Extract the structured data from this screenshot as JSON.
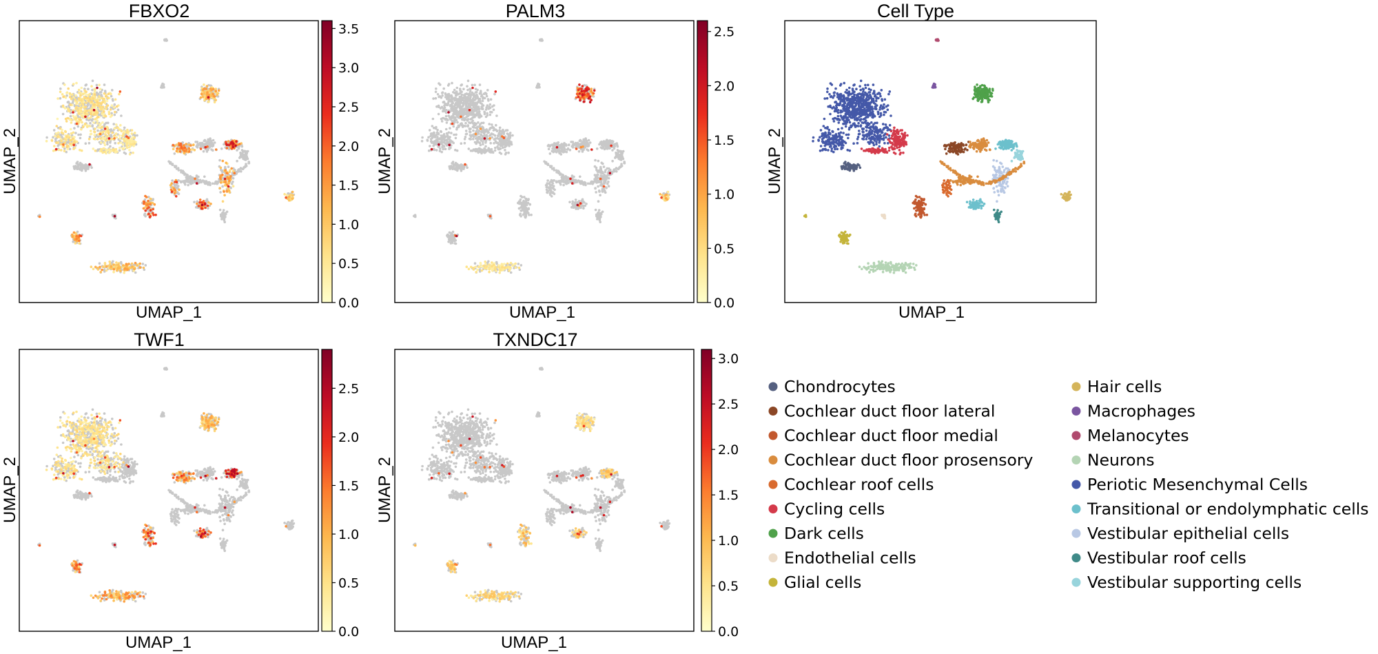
{
  "figure": {
    "gradient_stops": [
      "#ffffcc",
      "#fee38b",
      "#fdb84f",
      "#fc7c2e",
      "#ea2d1e",
      "#bd0c26",
      "#800026"
    ],
    "background_point_color": "#c8c8c8"
  },
  "chart_data": [
    {
      "type": "scatter",
      "title": "FBXO2",
      "xlabel": "UMAP_1",
      "ylabel": "UMAP_2",
      "grid": false,
      "colorbar": {
        "min": 0.0,
        "max": 3.6,
        "ticks": [
          "0.0",
          "0.5",
          "1.0",
          "1.5",
          "2.0",
          "2.5",
          "3.0",
          "3.5"
        ],
        "colormap": "YlOrRd"
      },
      "expression_by_cluster": {
        "Periotic Mesenchymal Cells": 0.6,
        "Cycling cells": 0.5,
        "Cochlear duct floor lateral": 1.5,
        "Cochlear duct floor medial": 1.8,
        "Cochlear roof cells": 1.8,
        "Transitional or endolymphatic cells": 2.2,
        "Dark cells": 1.2,
        "Hair cells": 1.0,
        "Glial cells": 1.4,
        "Neurons": 1.2,
        "Vestibular epithelial cells": 1.3
      }
    },
    {
      "type": "scatter",
      "title": "PALM3",
      "xlabel": "UMAP_1",
      "ylabel": "UMAP_2",
      "grid": false,
      "colorbar": {
        "min": 0.0,
        "max": 2.6,
        "ticks": [
          "0.0",
          "0.5",
          "1.0",
          "1.5",
          "2.0",
          "2.5"
        ],
        "colormap": "YlOrRd"
      },
      "expression_by_cluster": {
        "Dark cells": 1.6,
        "Hair cells": 0.8,
        "Neurons": 0.4
      }
    },
    {
      "type": "scatter",
      "title": "Cell Type",
      "xlabel": "UMAP_1",
      "ylabel": "UMAP_2",
      "grid": false,
      "legend_position": "below-right",
      "categories": [
        {
          "name": "Chondrocytes",
          "color": "#556080"
        },
        {
          "name": "Cochlear duct floor lateral",
          "color": "#8b4726"
        },
        {
          "name": "Cochlear duct floor medial",
          "color": "#c2582e"
        },
        {
          "name": "Cochlear duct floor prosensory",
          "color": "#d98c3e"
        },
        {
          "name": "Cochlear roof cells",
          "color": "#d96a2e"
        },
        {
          "name": "Cycling cells",
          "color": "#d43a4a"
        },
        {
          "name": "Dark cells",
          "color": "#4fa14a"
        },
        {
          "name": "Endothelial cells",
          "color": "#ecdcc8"
        },
        {
          "name": "Glial cells",
          "color": "#c4b43a"
        },
        {
          "name": "Hair cells",
          "color": "#d4b45a"
        },
        {
          "name": "Macrophages",
          "color": "#7a55a0"
        },
        {
          "name": "Melanocytes",
          "color": "#b04a6e"
        },
        {
          "name": "Neurons",
          "color": "#b4d4b4"
        },
        {
          "name": "Periotic Mesenchymal Cells",
          "color": "#4458a8"
        },
        {
          "name": "Transitional or endolymphatic cells",
          "color": "#6cc0cc"
        },
        {
          "name": "Vestibular epithelial cells",
          "color": "#b8c8e4"
        },
        {
          "name": "Vestibular roof cells",
          "color": "#3f8a88"
        },
        {
          "name": "Vestibular supporting cells",
          "color": "#98d4dc"
        }
      ]
    },
    {
      "type": "scatter",
      "title": "TWF1",
      "xlabel": "UMAP_1",
      "ylabel": "UMAP_2",
      "grid": false,
      "colorbar": {
        "min": 0.0,
        "max": 2.9,
        "ticks": [
          "0.0",
          "0.5",
          "1.0",
          "1.5",
          "2.0",
          "2.5"
        ],
        "colormap": "YlOrRd"
      },
      "expression_by_cluster": {
        "Periotic Mesenchymal Cells": 0.5,
        "Cochlear duct floor lateral": 1.3,
        "Cochlear duct floor medial": 1.6,
        "Transitional or endolymphatic cells": 2.0,
        "Dark cells": 0.9,
        "Glial cells": 1.3,
        "Neurons": 1.1
      }
    },
    {
      "type": "scatter",
      "title": "TXNDC17",
      "xlabel": "UMAP_1",
      "ylabel": "UMAP_2",
      "grid": false,
      "colorbar": {
        "min": 0.0,
        "max": 3.1,
        "ticks": [
          "0.0",
          "0.5",
          "1.0",
          "1.5",
          "2.0",
          "2.5",
          "3.0"
        ],
        "colormap": "YlOrRd"
      },
      "expression_by_cluster": {
        "Cochlear duct floor medial": 0.9,
        "Transitional or endolymphatic cells": 0.8,
        "Dark cells": 0.6,
        "Glial cells": 0.8,
        "Neurons": 0.7
      }
    }
  ]
}
